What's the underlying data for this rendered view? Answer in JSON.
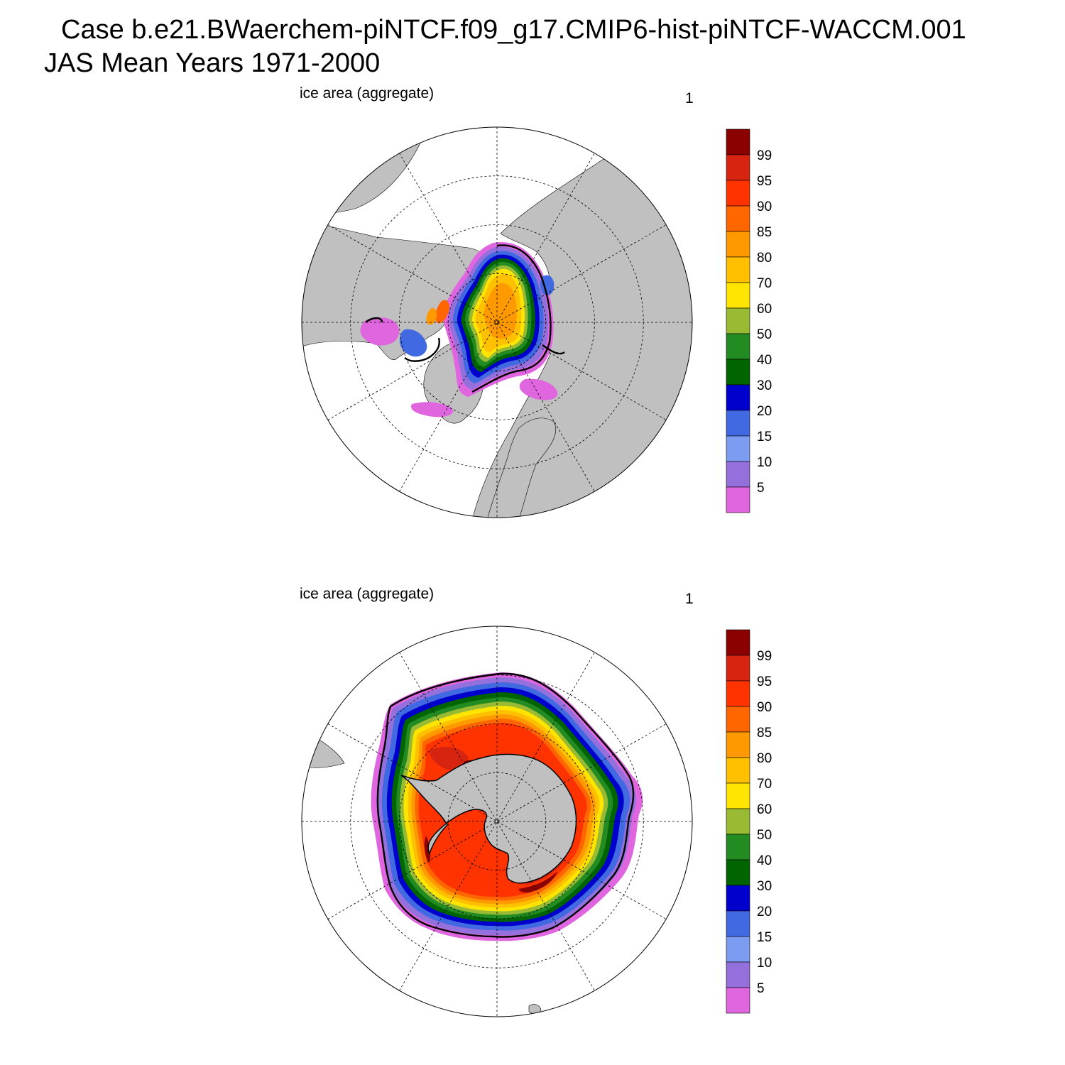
{
  "header": {
    "title_line1": "Case b.e21.BWaerchem-piNTCF.f09_g17.CMIP6-hist-piNTCF-WACCM.001",
    "title_line2": "JAS Mean   Years 1971-2000"
  },
  "panels": [
    {
      "id": "north",
      "hemisphere": "Northern Hemisphere",
      "label": "ice area  (aggregate)",
      "number": "1"
    },
    {
      "id": "south",
      "hemisphere": "Southern Hemisphere",
      "label": "ice area  (aggregate)",
      "number": "1"
    }
  ],
  "colorbar": {
    "tick_labels": [
      "99",
      "95",
      "90",
      "85",
      "80",
      "70",
      "60",
      "50",
      "40",
      "30",
      "20",
      "15",
      "10",
      "5"
    ],
    "colors_top_to_bottom": [
      "#8b0000",
      "#d62411",
      "#ff3300",
      "#ff6600",
      "#ff9900",
      "#ffc000",
      "#ffe400",
      "#99bb33",
      "#228b22",
      "#006400",
      "#0000cd",
      "#4169e1",
      "#7b9cf0",
      "#9370db",
      "#e066e0"
    ]
  },
  "colors": {
    "land": "#c0c0c0",
    "ocean": "#ffffff",
    "observed_edge": "#000000"
  }
}
